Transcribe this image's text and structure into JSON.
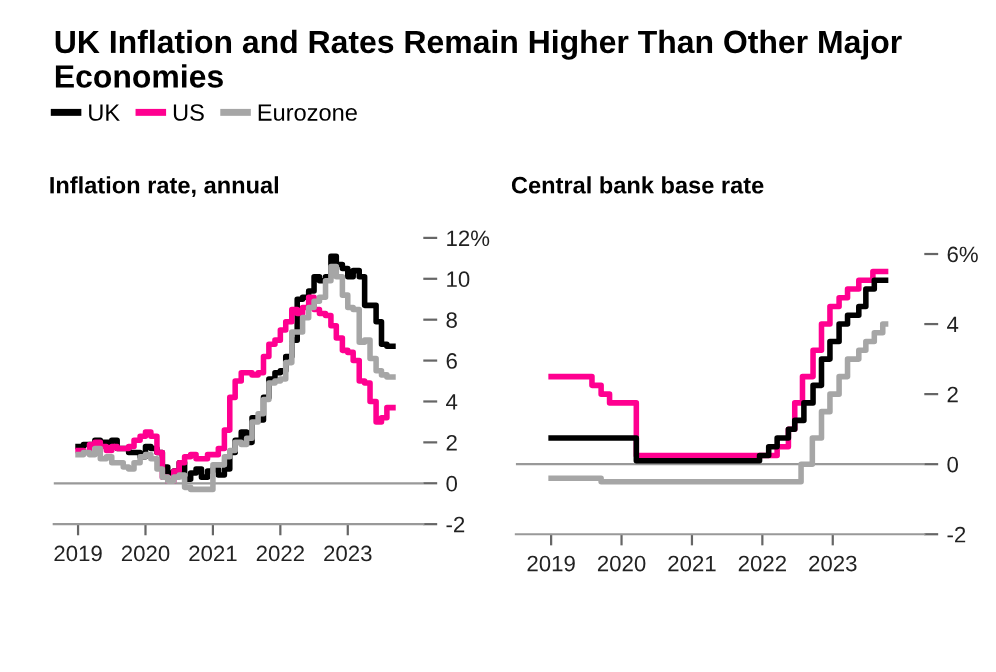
{
  "chart_data": [
    {
      "type": "step",
      "title": "UK Inflation and Rates Remain Higher Than Other Major Economies",
      "subtitle": "Inflation rate, annual",
      "legend": "top left",
      "xlim": [
        2018.64,
        2024.12
      ],
      "xticks": [
        {
          "value": 2019,
          "label": "2019"
        },
        {
          "value": 2020,
          "label": "2020"
        },
        {
          "value": 2021,
          "label": "2021"
        },
        {
          "value": 2022,
          "label": "2022"
        },
        {
          "value": 2023,
          "label": "2023"
        }
      ],
      "ylim": [
        -2,
        12
      ],
      "yticks": [
        {
          "value": -2,
          "label": "-2"
        },
        0,
        2,
        4,
        6,
        8,
        10,
        {
          "value": 12,
          "label": "12%"
        }
      ],
      "ref_lines": [
        {
          "axis": "y",
          "value": 0,
          "color": "#999999"
        }
      ],
      "grid": false,
      "series": [
        {
          "name": "UK",
          "color": "#000000",
          "x": [
            2019.0,
            2019.08,
            2019.17,
            2019.25,
            2019.33,
            2019.42,
            2019.5,
            2019.58,
            2019.67,
            2019.75,
            2019.83,
            2019.92,
            2020.0,
            2020.08,
            2020.17,
            2020.25,
            2020.33,
            2020.42,
            2020.5,
            2020.58,
            2020.67,
            2020.75,
            2020.83,
            2020.92,
            2021.0,
            2021.08,
            2021.17,
            2021.25,
            2021.33,
            2021.42,
            2021.5,
            2021.58,
            2021.67,
            2021.75,
            2021.83,
            2021.92,
            2022.0,
            2022.08,
            2022.17,
            2022.25,
            2022.33,
            2022.42,
            2022.5,
            2022.58,
            2022.67,
            2022.75,
            2022.83,
            2022.92,
            2023.0,
            2023.08,
            2023.17,
            2023.25,
            2023.33,
            2023.42,
            2023.5,
            2023.58,
            2023.67
          ],
          "values": [
            1.8,
            1.9,
            1.9,
            2.1,
            2.0,
            2.0,
            2.1,
            1.7,
            1.7,
            1.5,
            1.5,
            1.3,
            1.8,
            1.7,
            1.5,
            0.8,
            0.5,
            0.6,
            1.0,
            0.2,
            0.5,
            0.7,
            0.3,
            0.6,
            0.7,
            0.4,
            0.7,
            1.5,
            2.1,
            2.5,
            2.0,
            3.2,
            3.1,
            4.2,
            5.1,
            5.4,
            5.5,
            6.2,
            7.0,
            9.0,
            9.1,
            9.4,
            10.1,
            9.9,
            10.1,
            11.1,
            10.7,
            10.5,
            10.1,
            10.4,
            10.1,
            8.7,
            8.7,
            7.9,
            6.8,
            6.7,
            6.7
          ]
        },
        {
          "name": "US",
          "color": "#ff0090",
          "x": [
            2019.0,
            2019.08,
            2019.17,
            2019.25,
            2019.33,
            2019.42,
            2019.5,
            2019.58,
            2019.67,
            2019.75,
            2019.83,
            2019.92,
            2020.0,
            2020.08,
            2020.17,
            2020.25,
            2020.33,
            2020.42,
            2020.5,
            2020.58,
            2020.67,
            2020.75,
            2020.83,
            2020.92,
            2021.0,
            2021.08,
            2021.17,
            2021.25,
            2021.33,
            2021.42,
            2021.5,
            2021.58,
            2021.67,
            2021.75,
            2021.83,
            2021.92,
            2022.0,
            2022.08,
            2022.17,
            2022.25,
            2022.33,
            2022.42,
            2022.5,
            2022.58,
            2022.67,
            2022.75,
            2022.83,
            2022.92,
            2023.0,
            2023.08,
            2023.17,
            2023.25,
            2023.33,
            2023.42,
            2023.5,
            2023.58,
            2023.67
          ],
          "values": [
            1.6,
            1.5,
            1.9,
            2.0,
            1.8,
            1.6,
            1.8,
            1.7,
            1.7,
            1.8,
            2.1,
            2.3,
            2.5,
            2.3,
            1.5,
            0.3,
            0.1,
            0.6,
            1.0,
            1.3,
            1.4,
            1.2,
            1.2,
            1.4,
            1.4,
            1.7,
            2.6,
            4.2,
            5.0,
            5.4,
            5.4,
            5.3,
            5.4,
            6.2,
            6.8,
            7.0,
            7.5,
            7.9,
            8.5,
            8.3,
            8.6,
            9.1,
            8.5,
            8.3,
            8.2,
            7.7,
            7.1,
            6.5,
            6.4,
            6.0,
            5.0,
            4.9,
            4.0,
            3.0,
            3.2,
            3.7,
            3.7
          ]
        },
        {
          "name": "Eurozone",
          "color": "#a6a6a6",
          "x": [
            2019.0,
            2019.08,
            2019.17,
            2019.25,
            2019.33,
            2019.42,
            2019.5,
            2019.58,
            2019.67,
            2019.75,
            2019.83,
            2019.92,
            2020.0,
            2020.08,
            2020.17,
            2020.25,
            2020.33,
            2020.42,
            2020.5,
            2020.58,
            2020.67,
            2020.75,
            2020.83,
            2020.92,
            2021.0,
            2021.08,
            2021.17,
            2021.25,
            2021.33,
            2021.42,
            2021.5,
            2021.58,
            2021.67,
            2021.75,
            2021.83,
            2021.92,
            2022.0,
            2022.08,
            2022.17,
            2022.25,
            2022.33,
            2022.42,
            2022.5,
            2022.58,
            2022.67,
            2022.75,
            2022.83,
            2022.92,
            2023.0,
            2023.08,
            2023.17,
            2023.25,
            2023.33,
            2023.42,
            2023.5,
            2023.58,
            2023.67
          ],
          "values": [
            1.4,
            1.5,
            1.4,
            1.7,
            1.2,
            1.3,
            1.0,
            1.0,
            0.8,
            0.7,
            1.0,
            1.3,
            1.4,
            1.2,
            0.7,
            0.3,
            0.1,
            0.3,
            0.4,
            -0.2,
            -0.3,
            -0.3,
            -0.3,
            -0.3,
            0.9,
            0.9,
            1.3,
            1.6,
            2.0,
            1.9,
            2.2,
            3.0,
            3.4,
            4.1,
            4.9,
            5.0,
            5.1,
            5.9,
            7.4,
            7.4,
            8.1,
            8.6,
            8.9,
            9.1,
            9.9,
            10.6,
            10.1,
            9.2,
            8.6,
            8.5,
            6.9,
            7.0,
            6.1,
            5.5,
            5.3,
            5.2,
            5.2
          ]
        }
      ]
    },
    {
      "type": "step",
      "subtitle": "Central bank base rate",
      "xlim": [
        2018.5,
        2024.3
      ],
      "xticks": [
        {
          "value": 2019,
          "label": "2019"
        },
        {
          "value": 2020,
          "label": "2020"
        },
        {
          "value": 2021,
          "label": "2021"
        },
        {
          "value": 2022,
          "label": "2022"
        },
        {
          "value": 2023,
          "label": "2023"
        }
      ],
      "ylim": [
        -2,
        6
      ],
      "yticks": [
        {
          "value": -2,
          "label": "-2"
        },
        0,
        2,
        4,
        {
          "value": 6,
          "label": "6%"
        }
      ],
      "ref_lines": [
        {
          "axis": "y",
          "value": 0,
          "color": "#999999"
        }
      ],
      "grid": false,
      "series": [
        {
          "color": "#ff0090",
          "x": [
            2019.0,
            2019.58,
            2019.71,
            2019.83,
            2020.21,
            2022.21,
            2022.37,
            2022.46,
            2022.57,
            2022.72,
            2022.84,
            2022.96,
            2023.09,
            2023.21,
            2023.37,
            2023.57,
            2023.75
          ],
          "values": [
            2.5,
            2.25,
            2.0,
            1.75,
            0.25,
            0.5,
            1.0,
            1.75,
            2.5,
            3.25,
            4.0,
            4.5,
            4.75,
            5.0,
            5.25,
            5.5,
            5.5
          ]
        },
        {
          "color": "#000000",
          "x": [
            2019.0,
            2020.21,
            2021.96,
            2022.09,
            2022.21,
            2022.37,
            2022.46,
            2022.59,
            2022.72,
            2022.84,
            2022.96,
            2023.09,
            2023.21,
            2023.37,
            2023.47,
            2023.59,
            2023.75
          ],
          "values": [
            0.75,
            0.1,
            0.25,
            0.5,
            0.75,
            1.0,
            1.25,
            1.75,
            2.25,
            3.0,
            3.5,
            4.0,
            4.25,
            4.5,
            5.0,
            5.25,
            5.25
          ]
        },
        {
          "color": "#a6a6a6",
          "x": [
            2019.0,
            2019.71,
            2022.55,
            2022.71,
            2022.84,
            2022.96,
            2023.09,
            2023.21,
            2023.37,
            2023.47,
            2023.59,
            2023.71,
            2023.75
          ],
          "values": [
            -0.4,
            -0.5,
            0.0,
            0.75,
            1.5,
            2.0,
            2.5,
            3.0,
            3.25,
            3.5,
            3.75,
            4.0,
            4.0
          ]
        }
      ]
    }
  ]
}
